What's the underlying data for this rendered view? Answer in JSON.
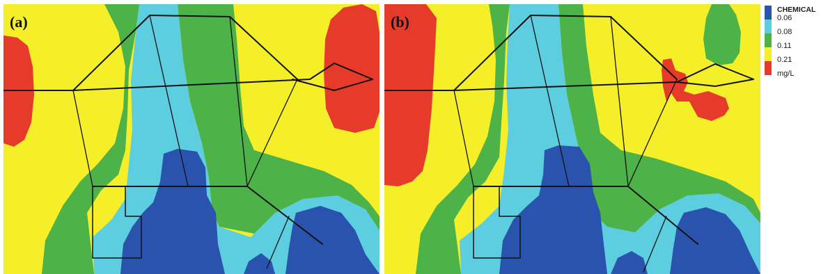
{
  "panels": [
    {
      "label": "(a)"
    },
    {
      "label": "(b)"
    }
  ],
  "legend": {
    "title": "CHEMICAL",
    "thresholds": [
      "0.06",
      "0.08",
      "0.11",
      "0.21"
    ],
    "unit": "mg/L",
    "colors": [
      "#2a53ad",
      "#5dcee0",
      "#4db248",
      "#f5ef2a",
      "#e63a2a"
    ]
  }
}
